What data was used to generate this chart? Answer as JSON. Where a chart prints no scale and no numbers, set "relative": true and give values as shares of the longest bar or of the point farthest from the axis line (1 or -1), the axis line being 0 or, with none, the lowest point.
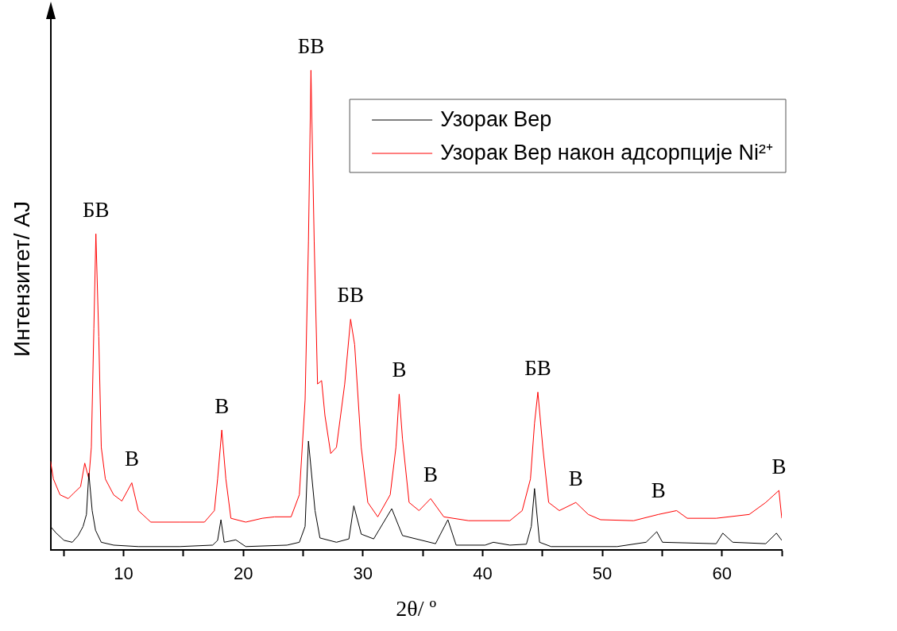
{
  "chart_data": {
    "type": "line",
    "relative": true,
    "xlabel": "2θ/ º",
    "ylabel": "Интензитет/ AJ",
    "xlim": [
      3.9,
      65
    ],
    "xticks": [
      {
        "value": 5,
        "label": null
      },
      10,
      {
        "value": 15,
        "label": null
      },
      20,
      {
        "value": 25,
        "label": null
      },
      30,
      {
        "value": 35,
        "label": null
      },
      40,
      {
        "value": 45,
        "label": null
      },
      50,
      {
        "value": 55,
        "label": null
      },
      60,
      {
        "value": 65,
        "label": null
      }
    ],
    "tick_labels": "x",
    "grid": false,
    "legend": "top right",
    "marker": "none",
    "line_style": "solid",
    "series": [
      {
        "name": "Узорак Вер",
        "color": "#000000",
        "x": [
          3.9,
          4.34,
          5.03,
          5.72,
          6.21,
          6.62,
          6.9,
          7.1,
          7.38,
          7.66,
          8.14,
          9.17,
          11.24,
          14.69,
          17.45,
          17.86,
          18.14,
          18.41,
          19.38,
          20.21,
          23.66,
          24.69,
          25.17,
          25.45,
          26.0,
          26.41,
          27.79,
          28.83,
          29.24,
          29.86,
          30.9,
          32.41,
          33.31,
          36.07,
          37.1,
          37.79,
          40.21,
          40.9,
          42.28,
          43.66,
          44.07,
          44.34,
          44.76,
          45.72,
          51.24,
          53.66,
          54.55,
          55.03,
          59.52,
          60.07,
          60.9,
          63.66,
          64.55,
          65
        ],
        "values": [
          0.049,
          0.036,
          0.02,
          0.016,
          0.03,
          0.049,
          0.074,
          0.16,
          0.082,
          0.041,
          0.016,
          0.01,
          0.007,
          0.007,
          0.01,
          0.02,
          0.063,
          0.016,
          0.021,
          0.007,
          0.01,
          0.016,
          0.049,
          0.227,
          0.082,
          0.025,
          0.016,
          0.023,
          0.092,
          0.033,
          0.023,
          0.086,
          0.03,
          0.013,
          0.063,
          0.01,
          0.01,
          0.016,
          0.01,
          0.012,
          0.049,
          0.128,
          0.016,
          0.007,
          0.007,
          0.016,
          0.038,
          0.016,
          0.013,
          0.035,
          0.016,
          0.013,
          0.035,
          0.02
        ]
      },
      {
        "name": "Узорак Вер након адсорпције Ni²⁺",
        "color": "#ff0000",
        "x": [
          3.9,
          4.14,
          4.69,
          5.38,
          5.86,
          6.41,
          6.76,
          7.1,
          7.31,
          7.52,
          7.69,
          7.93,
          8.14,
          8.48,
          9.17,
          9.86,
          10.69,
          11.24,
          12.28,
          14.69,
          16.76,
          17.59,
          17.86,
          18.21,
          18.55,
          18.97,
          20.21,
          21.59,
          22.62,
          24.0,
          24.69,
          25.17,
          25.45,
          25.66,
          25.93,
          26.21,
          26.55,
          26.83,
          27.31,
          27.79,
          28.48,
          28.97,
          29.31,
          29.86,
          30.41,
          31.24,
          32.28,
          32.76,
          33.03,
          33.31,
          33.86,
          34.69,
          35.66,
          36.76,
          38.83,
          42.28,
          43.31,
          44.0,
          44.34,
          44.62,
          45.03,
          45.52,
          46.41,
          47.79,
          48.83,
          49.86,
          52.62,
          54.69,
          56.21,
          57.1,
          59.52,
          62.28,
          63.66,
          64.76,
          65
        ],
        "values": [
          0.185,
          0.148,
          0.115,
          0.107,
          0.119,
          0.132,
          0.181,
          0.148,
          0.214,
          0.461,
          0.659,
          0.445,
          0.214,
          0.148,
          0.115,
          0.102,
          0.14,
          0.082,
          0.058,
          0.058,
          0.058,
          0.082,
          0.148,
          0.25,
          0.148,
          0.066,
          0.058,
          0.066,
          0.069,
          0.069,
          0.115,
          0.313,
          0.643,
          1,
          0.643,
          0.346,
          0.353,
          0.28,
          0.201,
          0.214,
          0.346,
          0.481,
          0.428,
          0.214,
          0.099,
          0.069,
          0.115,
          0.214,
          0.325,
          0.231,
          0.099,
          0.082,
          0.107,
          0.069,
          0.061,
          0.061,
          0.082,
          0.148,
          0.264,
          0.329,
          0.214,
          0.099,
          0.082,
          0.099,
          0.074,
          0.063,
          0.061,
          0.074,
          0.082,
          0.066,
          0.066,
          0.074,
          0.099,
          0.124,
          0.066
        ]
      }
    ],
    "annotations": [
      {
        "text": "БВ",
        "x": 7.69,
        "y": 0.659
      },
      {
        "text": "В",
        "x": 10.69,
        "y": 0.14
      },
      {
        "text": "В",
        "x": 18.21,
        "y": 0.25
      },
      {
        "text": "БВ",
        "x": 25.66,
        "y": 1
      },
      {
        "text": "БВ",
        "x": 28.97,
        "y": 0.481
      },
      {
        "text": "В",
        "x": 33.03,
        "y": 0.325
      },
      {
        "text": "В",
        "x": 35.66,
        "y": 0.107
      },
      {
        "text": "БВ",
        "x": 44.62,
        "y": 0.329
      },
      {
        "text": "В",
        "x": 47.79,
        "y": 0.099
      },
      {
        "text": "В",
        "x": 54.69,
        "y": 0.074
      },
      {
        "text": "В",
        "x": 64.76,
        "y": 0.124
      }
    ]
  }
}
